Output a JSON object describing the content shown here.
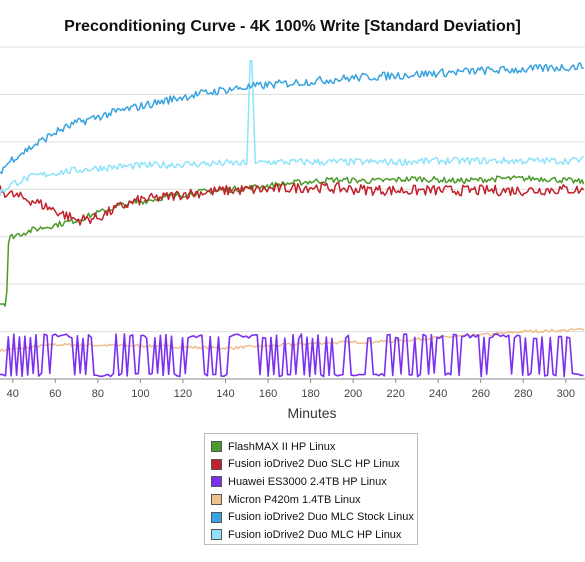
{
  "chart_data": {
    "type": "line",
    "title": "Preconditioning Curve - 4K 100% Write [Standard Deviation]",
    "xlabel": "Minutes",
    "ylabel": "",
    "xlim": [
      34,
      309
    ],
    "ylim": [
      0,
      28
    ],
    "x_ticks": [
      40,
      60,
      80,
      100,
      120,
      140,
      160,
      180,
      200,
      220,
      240,
      260,
      280,
      300
    ],
    "grid": true,
    "legend_position": "bottom",
    "series": [
      {
        "name": "FlashMAX II HP Linux",
        "color": "#4b9a2c",
        "x": [
          34,
          37,
          38,
          39,
          50,
          70,
          90,
          110,
          130,
          150,
          170,
          190,
          210,
          230,
          250,
          270,
          290,
          309
        ],
        "values": [
          6.4,
          6.4,
          11.5,
          12.0,
          12.6,
          13.4,
          14.6,
          15.3,
          15.8,
          16.1,
          16.5,
          16.8,
          16.7,
          16.9,
          16.7,
          16.9,
          16.9,
          16.6
        ]
      },
      {
        "name": "Fusion ioDrive2 Duo SLC HP Linux",
        "color": "#c0212b",
        "x": [
          34,
          40,
          50,
          60,
          70,
          80,
          90,
          100,
          110,
          120,
          140,
          160,
          180,
          200,
          220,
          240,
          260,
          280,
          300,
          309
        ],
        "values": [
          15.9,
          15.5,
          15.0,
          14.2,
          13.4,
          13.6,
          14.5,
          15.1,
          15.3,
          15.6,
          15.9,
          16.0,
          16.2,
          16.0,
          15.9,
          15.9,
          15.9,
          15.9,
          16.0,
          15.9
        ]
      },
      {
        "name": "Huawei ES3000 2.4TB HP Linux",
        "color": "#7b2ff0",
        "x": [
          34,
          309
        ],
        "values": [
          0.2,
          3.8
        ],
        "toggle_low": 0.2,
        "toggle_high": 3.8
      },
      {
        "name": "Micron P420m 1.4TB Linux",
        "color": "#ecc18c",
        "x": [
          34,
          60,
          100,
          140,
          180,
          200,
          220,
          240,
          260,
          280,
          300,
          309
        ],
        "values": [
          2.4,
          2.9,
          2.8,
          2.6,
          3.0,
          3.1,
          3.2,
          3.5,
          3.7,
          4.0,
          4.1,
          4.2
        ]
      },
      {
        "name": "Fusion ioDrive2 Duo MLC Stock Linux",
        "color": "#38a3df",
        "x": [
          34,
          40,
          50,
          60,
          70,
          80,
          90,
          100,
          110,
          120,
          130,
          140,
          150,
          160,
          180,
          200,
          220,
          240,
          260,
          280,
          300,
          309
        ],
        "values": [
          17.5,
          18.6,
          19.7,
          20.8,
          21.6,
          22.1,
          22.6,
          23.0,
          23.4,
          23.8,
          24.1,
          24.4,
          24.6,
          24.8,
          25.1,
          25.4,
          25.6,
          25.8,
          26.0,
          26.1,
          26.3,
          26.4
        ]
      },
      {
        "name": "Fusion ioDrive2 Duo MLC HP Linux",
        "color": "#8ee3fa",
        "x": [
          34,
          40,
          50,
          60,
          70,
          80,
          100,
          120,
          140,
          150,
          152,
          154,
          160,
          180,
          200,
          220,
          240,
          260,
          280,
          300,
          309
        ],
        "values": [
          15.7,
          16.5,
          17.1,
          17.4,
          17.6,
          17.8,
          18.0,
          18.1,
          18.2,
          18.2,
          29.0,
          18.2,
          18.3,
          18.3,
          18.3,
          18.3,
          18.4,
          18.4,
          18.4,
          18.4,
          18.5
        ]
      }
    ]
  }
}
